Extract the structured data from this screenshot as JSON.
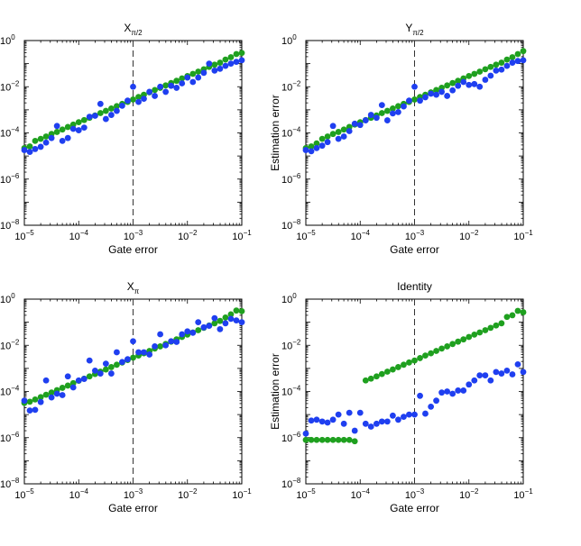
{
  "chart_data": [
    {
      "type": "scatter",
      "title": "X",
      "title_sub": "π/2",
      "xlabel": "Gate error",
      "ylabel": "",
      "xscale": "log",
      "yscale": "log",
      "xlim": [
        1e-05,
        0.1
      ],
      "ylim": [
        1e-08,
        1
      ],
      "xticks": [
        {
          "b": "10",
          "e": "−5"
        },
        {
          "b": "10",
          "e": "−4"
        },
        {
          "b": "10",
          "e": "−3"
        },
        {
          "b": "10",
          "e": "−2"
        },
        {
          "b": "10",
          "e": "−1"
        }
      ],
      "yticks": [
        {
          "b": "10",
          "e": "−8"
        },
        {
          "b": "10",
          "e": "−6"
        },
        {
          "b": "10",
          "e": "−4"
        },
        {
          "b": "10",
          "e": "−2"
        },
        {
          "b": "10",
          "e": "0"
        }
      ],
      "vline_x": 0.001,
      "series": [
        {
          "name": "blue",
          "color": "#1f3ff0",
          "x": [
            1e-05,
            1.26e-05,
            1.58e-05,
            2e-05,
            2.51e-05,
            3.16e-05,
            3.98e-05,
            5.01e-05,
            6.31e-05,
            7.94e-05,
            0.0001,
            0.000126,
            0.000158,
            0.0002,
            0.000251,
            0.000316,
            0.000398,
            0.000501,
            0.000631,
            0.000794,
            0.001,
            0.00126,
            0.00158,
            0.002,
            0.00251,
            0.00316,
            0.00398,
            0.00501,
            0.00631,
            0.00794,
            0.01,
            0.0126,
            0.0158,
            0.02,
            0.0251,
            0.0316,
            0.0398,
            0.0501,
            0.0631,
            0.0794,
            0.1
          ],
          "y": [
            1.8e-05,
            1.5e-05,
            2e-05,
            2.5e-05,
            3.8e-05,
            6e-05,
            0.0002,
            4.5e-05,
            6e-05,
            0.00015,
            0.00013,
            0.00017,
            0.0005,
            0.00055,
            0.0018,
            0.0004,
            0.0006,
            0.0009,
            0.0015,
            0.0025,
            0.01,
            0.0022,
            0.003,
            0.006,
            0.004,
            0.01,
            0.006,
            0.011,
            0.009,
            0.014,
            0.025,
            0.016,
            0.025,
            0.04,
            0.1,
            0.05,
            0.06,
            0.08,
            0.1,
            0.12,
            0.14
          ]
        },
        {
          "name": "green",
          "color": "#1fa01f",
          "x": [
            1e-05,
            1.26e-05,
            1.58e-05,
            2e-05,
            2.51e-05,
            3.16e-05,
            3.98e-05,
            5.01e-05,
            6.31e-05,
            7.94e-05,
            0.0001,
            0.000126,
            0.000158,
            0.0002,
            0.000251,
            0.000316,
            0.000398,
            0.000501,
            0.000631,
            0.000794,
            0.001,
            0.00126,
            0.00158,
            0.002,
            0.00251,
            0.00316,
            0.00398,
            0.00501,
            0.00631,
            0.00794,
            0.01,
            0.0126,
            0.0158,
            0.02,
            0.0251,
            0.0316,
            0.0398,
            0.0501,
            0.0631,
            0.0794,
            0.1
          ],
          "y": [
            2.2e-05,
            2.6e-05,
            4.5e-05,
            5.5e-05,
            7e-05,
            9e-05,
            0.00011,
            0.00014,
            0.00018,
            0.00023,
            0.00029,
            0.00036,
            0.00045,
            0.00057,
            0.00072,
            0.0009,
            0.00114,
            0.00144,
            0.0018,
            0.0022,
            0.0028,
            0.0036,
            0.0045,
            0.0057,
            0.0072,
            0.009,
            0.0114,
            0.0144,
            0.018,
            0.023,
            0.029,
            0.036,
            0.045,
            0.057,
            0.072,
            0.09,
            0.11,
            0.15,
            0.19,
            0.26,
            0.29
          ]
        }
      ]
    },
    {
      "type": "scatter",
      "title": "Y",
      "title_sub": "π/2",
      "xlabel": "Gate error",
      "ylabel": "Estimation error",
      "xscale": "log",
      "yscale": "log",
      "xlim": [
        1e-05,
        0.1
      ],
      "ylim": [
        1e-08,
        1
      ],
      "xticks": [
        {
          "b": "10",
          "e": "−5"
        },
        {
          "b": "10",
          "e": "−4"
        },
        {
          "b": "10",
          "e": "−3"
        },
        {
          "b": "10",
          "e": "−2"
        },
        {
          "b": "10",
          "e": "−1"
        }
      ],
      "yticks": [
        {
          "b": "10",
          "e": "−8"
        },
        {
          "b": "10",
          "e": "−6"
        },
        {
          "b": "10",
          "e": "−4"
        },
        {
          "b": "10",
          "e": "−2"
        },
        {
          "b": "10",
          "e": "0"
        }
      ],
      "vline_x": 0.001,
      "series": [
        {
          "name": "blue",
          "color": "#1f3ff0",
          "x": [
            1e-05,
            1.26e-05,
            1.58e-05,
            2e-05,
            2.51e-05,
            3.16e-05,
            3.98e-05,
            5.01e-05,
            6.31e-05,
            7.94e-05,
            0.0001,
            0.000126,
            0.000158,
            0.0002,
            0.000251,
            0.000316,
            0.000398,
            0.000501,
            0.000631,
            0.000794,
            0.001,
            0.00126,
            0.00158,
            0.002,
            0.00251,
            0.00316,
            0.00398,
            0.00501,
            0.00631,
            0.00794,
            0.01,
            0.0126,
            0.0158,
            0.02,
            0.0251,
            0.0316,
            0.0398,
            0.0501,
            0.0631,
            0.0794,
            0.1
          ],
          "y": [
            1.8e-05,
            1.6e-05,
            2.2e-05,
            2.8e-05,
            4e-05,
            0.0002,
            5.5e-05,
            7e-05,
            0.00012,
            0.00025,
            0.00022,
            0.00035,
            0.0006,
            0.00045,
            0.0016,
            0.00035,
            0.0007,
            0.0008,
            0.0014,
            0.0025,
            0.01,
            0.0025,
            0.0035,
            0.005,
            0.0045,
            0.006,
            0.004,
            0.007,
            0.011,
            0.016,
            0.012,
            0.013,
            0.01,
            0.02,
            0.03,
            0.05,
            0.055,
            0.08,
            0.11,
            0.13,
            0.14
          ]
        },
        {
          "name": "green",
          "color": "#1fa01f",
          "x": [
            1e-05,
            1.26e-05,
            1.58e-05,
            2e-05,
            2.51e-05,
            3.16e-05,
            3.98e-05,
            5.01e-05,
            6.31e-05,
            7.94e-05,
            0.0001,
            0.000126,
            0.000158,
            0.0002,
            0.000251,
            0.000316,
            0.000398,
            0.000501,
            0.000631,
            0.000794,
            0.001,
            0.00126,
            0.00158,
            0.002,
            0.00251,
            0.00316,
            0.00398,
            0.00501,
            0.00631,
            0.00794,
            0.01,
            0.0126,
            0.0158,
            0.02,
            0.0251,
            0.0316,
            0.0398,
            0.0501,
            0.0631,
            0.0794,
            0.1
          ],
          "y": [
            2.2e-05,
            2.6e-05,
            3.5e-05,
            5.5e-05,
            7e-05,
            9e-05,
            0.00011,
            0.00014,
            0.00018,
            0.00023,
            0.00029,
            0.00036,
            0.00045,
            0.00057,
            0.00072,
            0.0009,
            0.00114,
            0.00144,
            0.0018,
            0.0022,
            0.0028,
            0.0036,
            0.0045,
            0.0057,
            0.0072,
            0.009,
            0.0114,
            0.0144,
            0.018,
            0.023,
            0.029,
            0.036,
            0.045,
            0.057,
            0.072,
            0.09,
            0.11,
            0.15,
            0.19,
            0.26,
            0.35
          ]
        }
      ]
    },
    {
      "type": "scatter",
      "title": "X",
      "title_sub": "π",
      "xlabel": "Gate error",
      "ylabel": "",
      "xscale": "log",
      "yscale": "log",
      "xlim": [
        1e-05,
        0.1
      ],
      "ylim": [
        1e-08,
        1
      ],
      "xticks": [
        {
          "b": "10",
          "e": "−5"
        },
        {
          "b": "10",
          "e": "−4"
        },
        {
          "b": "10",
          "e": "−3"
        },
        {
          "b": "10",
          "e": "−2"
        },
        {
          "b": "10",
          "e": "−1"
        }
      ],
      "yticks": [
        {
          "b": "10",
          "e": "−8"
        },
        {
          "b": "10",
          "e": "−6"
        },
        {
          "b": "10",
          "e": "−4"
        },
        {
          "b": "10",
          "e": "−2"
        },
        {
          "b": "10",
          "e": "0"
        }
      ],
      "vline_x": 0.001,
      "series": [
        {
          "name": "blue",
          "color": "#1f3ff0",
          "x": [
            1e-05,
            1.26e-05,
            1.58e-05,
            2e-05,
            2.51e-05,
            3.16e-05,
            3.98e-05,
            5.01e-05,
            6.31e-05,
            7.94e-05,
            0.0001,
            0.000126,
            0.000158,
            0.0002,
            0.000251,
            0.000316,
            0.000398,
            0.000501,
            0.000631,
            0.000794,
            0.001,
            0.00126,
            0.00158,
            0.002,
            0.00251,
            0.00316,
            0.00398,
            0.00501,
            0.00631,
            0.00794,
            0.01,
            0.0126,
            0.0158,
            0.02,
            0.0251,
            0.0316,
            0.0398,
            0.0501,
            0.0631,
            0.0794,
            0.1
          ],
          "y": [
            4e-05,
            1.5e-05,
            1.6e-05,
            3.5e-05,
            0.0003,
            5.5e-05,
            8e-05,
            7e-05,
            0.00045,
            0.00015,
            0.0003,
            0.00035,
            0.0022,
            0.0008,
            0.0006,
            0.0016,
            0.0006,
            0.005,
            0.0019,
            0.0025,
            0.015,
            0.005,
            0.005,
            0.004,
            0.009,
            0.03,
            0.01,
            0.015,
            0.014,
            0.03,
            0.04,
            0.035,
            0.1,
            0.06,
            0.07,
            0.15,
            0.05,
            0.09,
            0.14,
            0.12,
            0.1
          ]
        },
        {
          "name": "green",
          "color": "#1fa01f",
          "x": [
            1e-05,
            1.26e-05,
            1.58e-05,
            2e-05,
            2.51e-05,
            3.16e-05,
            3.98e-05,
            5.01e-05,
            6.31e-05,
            7.94e-05,
            0.0001,
            0.000126,
            0.000158,
            0.0002,
            0.000251,
            0.000316,
            0.000398,
            0.000501,
            0.000631,
            0.000794,
            0.001,
            0.00126,
            0.00158,
            0.002,
            0.00251,
            0.00316,
            0.00398,
            0.00501,
            0.00631,
            0.00794,
            0.01,
            0.0126,
            0.0158,
            0.02,
            0.0251,
            0.0316,
            0.0398,
            0.0501,
            0.0631,
            0.0794,
            0.1
          ],
          "y": [
            3.2e-05,
            3.6e-05,
            4.5e-05,
            5.7e-05,
            7.2e-05,
            9e-05,
            0.000114,
            0.000144,
            0.00018,
            0.00023,
            0.00029,
            0.00036,
            0.00045,
            0.00057,
            0.00072,
            0.0009,
            0.00114,
            0.00144,
            0.0018,
            0.0023,
            0.0029,
            0.0036,
            0.0045,
            0.0057,
            0.0072,
            0.009,
            0.0114,
            0.0144,
            0.018,
            0.023,
            0.029,
            0.036,
            0.045,
            0.057,
            0.072,
            0.09,
            0.114,
            0.16,
            0.22,
            0.32,
            0.3
          ]
        }
      ]
    },
    {
      "type": "scatter",
      "title": "Identity",
      "title_sub": "",
      "xlabel": "Gate error",
      "ylabel": "Estimation error",
      "xscale": "log",
      "yscale": "log",
      "xlim": [
        1e-05,
        0.1
      ],
      "ylim": [
        1e-08,
        1
      ],
      "xticks": [
        {
          "b": "10",
          "e": "−5"
        },
        {
          "b": "10",
          "e": "−4"
        },
        {
          "b": "10",
          "e": "−3"
        },
        {
          "b": "10",
          "e": "−2"
        },
        {
          "b": "10",
          "e": "−1"
        }
      ],
      "yticks": [
        {
          "b": "10",
          "e": "−8"
        },
        {
          "b": "10",
          "e": "−6"
        },
        {
          "b": "10",
          "e": "−4"
        },
        {
          "b": "10",
          "e": "−2"
        },
        {
          "b": "10",
          "e": "0"
        }
      ],
      "vline_x": 0.001,
      "series": [
        {
          "name": "blue",
          "color": "#1f3ff0",
          "x": [
            1e-05,
            1.26e-05,
            1.58e-05,
            2e-05,
            2.51e-05,
            3.16e-05,
            3.98e-05,
            5.01e-05,
            6.31e-05,
            7.94e-05,
            0.0001,
            0.000126,
            0.000158,
            0.0002,
            0.000251,
            0.000316,
            0.000398,
            0.000501,
            0.000631,
            0.000794,
            0.001,
            0.00126,
            0.00158,
            0.002,
            0.00251,
            0.00316,
            0.00398,
            0.00501,
            0.00631,
            0.00794,
            0.01,
            0.0126,
            0.0158,
            0.02,
            0.0251,
            0.0316,
            0.0398,
            0.0501,
            0.0631,
            0.0794,
            0.1
          ],
          "y": [
            1.5e-06,
            5.5e-06,
            6e-06,
            5e-06,
            4.5e-06,
            6e-06,
            1e-05,
            4e-06,
            1.2e-05,
            2e-06,
            1.2e-05,
            4e-06,
            3e-06,
            4e-06,
            5e-06,
            5e-06,
            9e-06,
            6e-06,
            8e-06,
            1e-05,
            1e-05,
            6.5e-05,
            1.1e-05,
            2.2e-05,
            4e-05,
            9e-05,
            0.0001,
            8e-05,
            0.00011,
            0.00011,
            0.0002,
            0.0003,
            0.0005,
            0.0005,
            0.0003,
            0.0007,
            0.0006,
            0.0008,
            0.00055,
            0.0015,
            0.0007
          ]
        },
        {
          "name": "green",
          "color": "#1fa01f",
          "x": [
            1e-05,
            1.26e-05,
            1.58e-05,
            2e-05,
            2.51e-05,
            3.16e-05,
            3.98e-05,
            5.01e-05,
            6.31e-05,
            7.94e-05,
            0.000126,
            0.000158,
            0.0002,
            0.000251,
            0.000316,
            0.000398,
            0.000501,
            0.000631,
            0.000794,
            0.001,
            0.00126,
            0.00158,
            0.002,
            0.00251,
            0.00316,
            0.00398,
            0.00501,
            0.00631,
            0.00794,
            0.01,
            0.0126,
            0.0158,
            0.02,
            0.0251,
            0.0316,
            0.0398,
            0.0501,
            0.0631,
            0.0794,
            0.1
          ],
          "y": [
            8e-07,
            8e-07,
            8e-07,
            8e-07,
            8e-07,
            8e-07,
            8e-07,
            8e-07,
            8e-07,
            7e-07,
            0.0003,
            0.00036,
            0.00045,
            0.00057,
            0.00072,
            0.0009,
            0.00114,
            0.00144,
            0.0018,
            0.0022,
            0.0028,
            0.0036,
            0.0045,
            0.0057,
            0.0072,
            0.009,
            0.0114,
            0.0144,
            0.018,
            0.023,
            0.029,
            0.036,
            0.045,
            0.057,
            0.072,
            0.09,
            0.17,
            0.2,
            0.31,
            0.27
          ]
        }
      ]
    }
  ]
}
